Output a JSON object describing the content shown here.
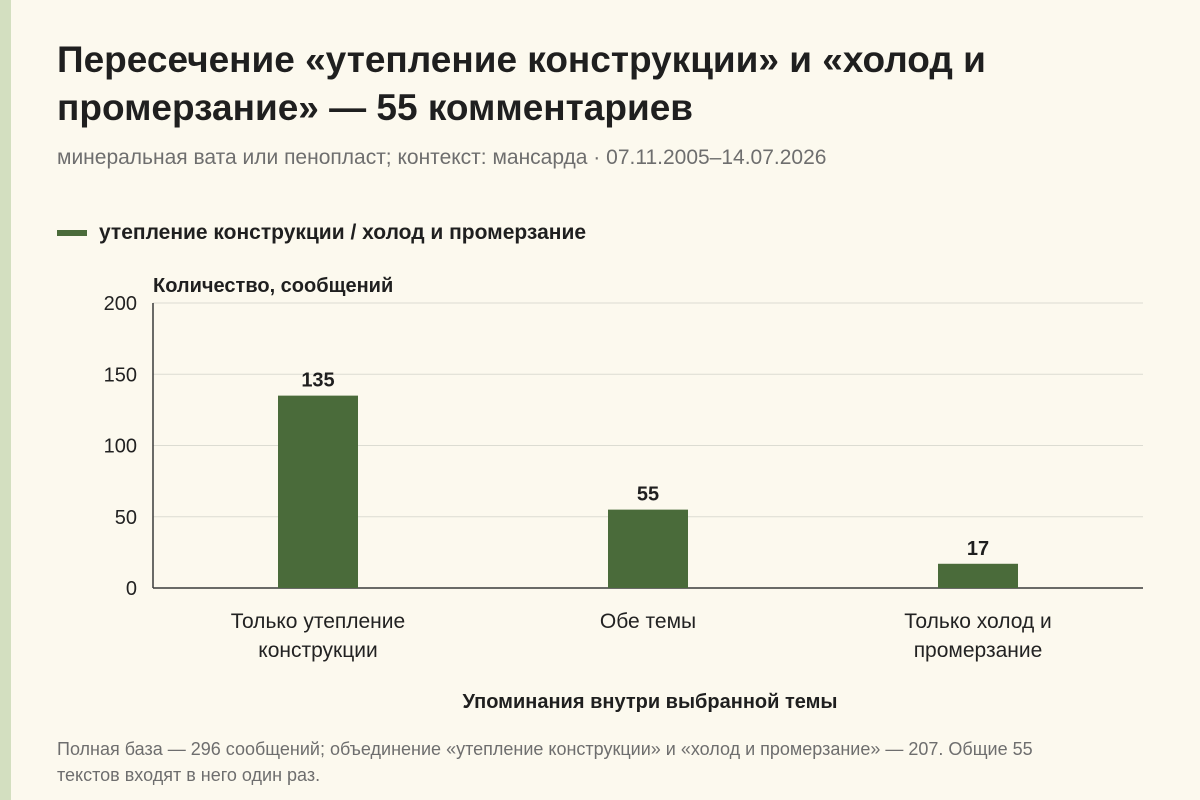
{
  "title": "Пересечение «утепление конструкции» и «холод и промерзание» — 55 комментариев",
  "subtitle": "минеральная вата или пенопласт; контекст: мансарда · 07.11.2005–14.07.2026",
  "footnote": "Полная база — 296 сообщений; объединение «утепление конструкции» и «холод и промерзание» — 207. Общие 55 текстов входят в него один раз.",
  "colors": {
    "bar": "#4a6b3a",
    "grid": "#dcdcd2",
    "accent_stripe": "#d3dfc0",
    "background": "#fcf9ee"
  },
  "chart_data": {
    "type": "bar",
    "title": "Пересечение «утепление конструкции» и «холод и промерзание» — 55 комментариев",
    "subtitle": "минеральная вата или пенопласт; контекст: мансарда · 07.11.2005–14.07.2026",
    "ylabel": "Количество, сообщений",
    "xlabel": "Упоминания внутри выбранной темы",
    "ylim": [
      0,
      200
    ],
    "yticks": [
      0,
      50,
      100,
      150,
      200
    ],
    "grid": true,
    "legend_position": "top-left",
    "categories": [
      [
        "Только утепление",
        "конструкции"
      ],
      [
        "Обе темы"
      ],
      [
        "Только холод и",
        "промерзание"
      ]
    ],
    "series": [
      {
        "name": "утепление конструкции / холод и промерзание",
        "values": [
          135,
          55,
          17
        ]
      }
    ]
  }
}
